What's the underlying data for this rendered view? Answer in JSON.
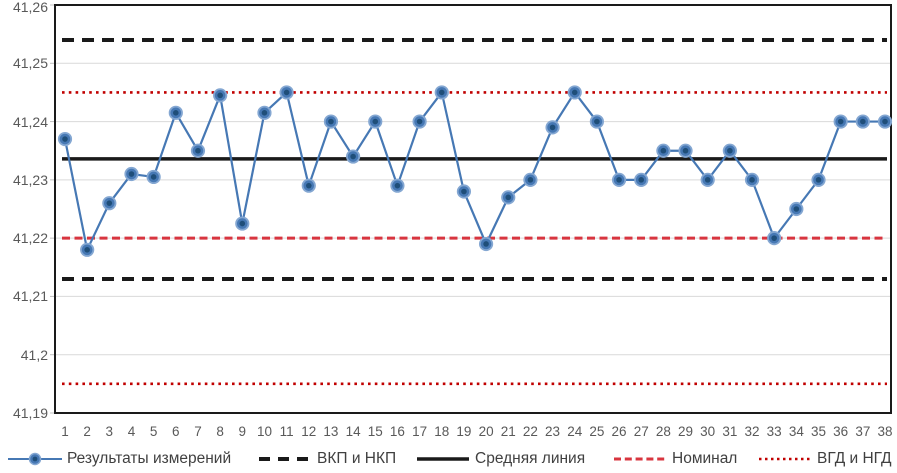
{
  "chart_data": {
    "type": "line",
    "title": "",
    "grid": true,
    "legend_position": "bottom",
    "ylim": [
      41.19,
      41.26
    ],
    "yticks": [
      {
        "value": 41.26,
        "label": "41,26"
      },
      {
        "value": 41.25,
        "label": "41,25"
      },
      {
        "value": 41.24,
        "label": "41,24"
      },
      {
        "value": 41.23,
        "label": "41,23"
      },
      {
        "value": 41.22,
        "label": "41,22"
      },
      {
        "value": 41.21,
        "label": "41,21"
      },
      {
        "value": 41.2,
        "label": "41,2"
      },
      {
        "value": 41.19,
        "label": "41,19"
      }
    ],
    "x": [
      1,
      2,
      3,
      4,
      5,
      6,
      7,
      8,
      9,
      10,
      11,
      12,
      13,
      14,
      15,
      16,
      17,
      18,
      19,
      20,
      21,
      22,
      23,
      24,
      25,
      26,
      27,
      28,
      29,
      30,
      31,
      32,
      33,
      34,
      35,
      36,
      37,
      38
    ],
    "series": [
      {
        "name": "Результаты измерений",
        "slug": "measurements",
        "kind": "line-markers",
        "color": "#4678b4",
        "values": [
          41.237,
          41.218,
          41.226,
          41.231,
          41.2305,
          41.2415,
          41.235,
          41.2445,
          41.2225,
          41.2415,
          41.245,
          41.229,
          41.24,
          41.234,
          41.24,
          41.229,
          41.24,
          41.245,
          41.228,
          41.219,
          41.227,
          41.23,
          41.239,
          41.245,
          41.24,
          41.23,
          41.23,
          41.235,
          41.235,
          41.23,
          41.235,
          41.23,
          41.22,
          41.225,
          41.23,
          41.24,
          41.24,
          41.24
        ]
      },
      {
        "name": "ВКП и НКП",
        "slug": "control-limits",
        "kind": "hline",
        "style": "dash-bold",
        "color": "#1a1a1a",
        "levels": [
          41.254,
          41.213
        ]
      },
      {
        "name": "Средняя линия",
        "slug": "center-line",
        "kind": "hline",
        "style": "solid",
        "color": "#1a1a1a",
        "levels": [
          41.2336
        ]
      },
      {
        "name": "Номинал",
        "slug": "nominal",
        "kind": "hline",
        "style": "dash",
        "color": "#d8353f",
        "levels": [
          41.22
        ]
      },
      {
        "name": "ВГД и НГД",
        "slug": "tolerance-limits",
        "kind": "hline",
        "style": "dot",
        "color": "#c00000",
        "levels": [
          41.245,
          41.195
        ]
      }
    ]
  }
}
